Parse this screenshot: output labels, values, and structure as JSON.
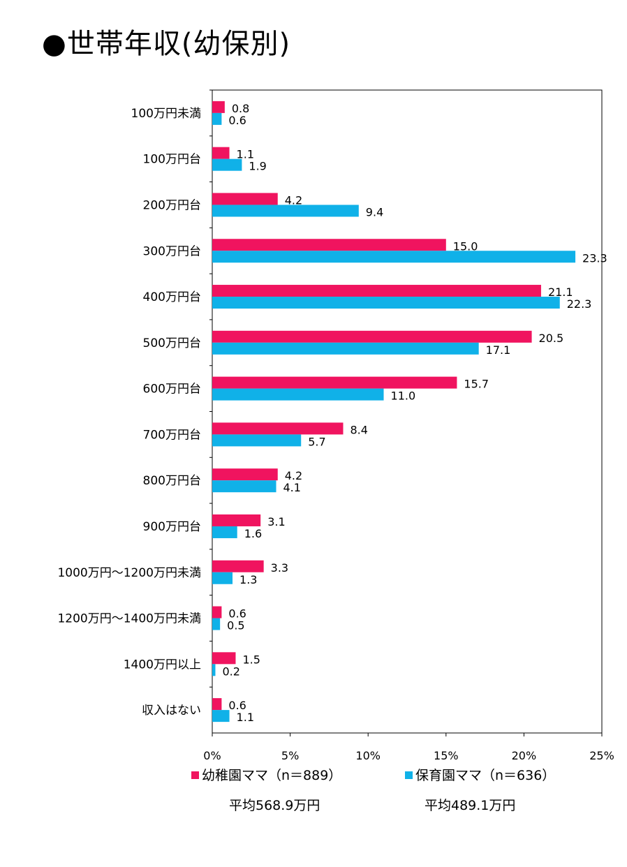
{
  "title": "●世帯年収(幼保別)",
  "colors": {
    "series1": "#f0145f",
    "series2": "#10b1e8",
    "axis": "#000000"
  },
  "chart_data": {
    "type": "bar",
    "orientation": "horizontal",
    "categories": [
      "100万円未満",
      "100万円台",
      "200万円台",
      "300万円台",
      "400万円台",
      "500万円台",
      "600万円台",
      "700万円台",
      "800万円台",
      "900万円台",
      "1000万円～1200万円未満",
      "1200万円～1400万円未満",
      "1400万円以上",
      "収入はない"
    ],
    "series": [
      {
        "name": "幼稚園ママ（n＝889）",
        "values": [
          0.8,
          1.1,
          4.2,
          15.0,
          21.1,
          20.5,
          15.7,
          8.4,
          4.2,
          3.1,
          3.3,
          0.6,
          1.5,
          0.6
        ]
      },
      {
        "name": "保育園ママ（n＝636）",
        "values": [
          0.6,
          1.9,
          9.4,
          23.3,
          22.3,
          17.1,
          11.0,
          5.7,
          4.1,
          1.6,
          1.3,
          0.5,
          0.2,
          1.1
        ]
      }
    ],
    "value_labels": [
      [
        "0.8",
        "1.1",
        "4.2",
        "15.0",
        "21.1",
        "20.5",
        "15.7",
        "8.4",
        "4.2",
        "3.1",
        "3.3",
        "0.6",
        "1.5",
        "0.6"
      ],
      [
        "0.6",
        "1.9",
        "9.4",
        "23.3",
        "22.3",
        "17.1",
        "11.0",
        "5.7",
        "4.1",
        "1.6",
        "1.3",
        "0.5",
        "0.2",
        "1.1"
      ]
    ],
    "xlim": [
      0,
      25
    ],
    "xticks": [
      0,
      5,
      10,
      15,
      20,
      25
    ],
    "xtick_labels": [
      "0%",
      "5%",
      "10%",
      "15%",
      "20%",
      "25%"
    ],
    "grid": false,
    "legend_position": "bottom"
  },
  "legend": {
    "series1_label": "幼稚園ママ（n＝889）",
    "series2_label": "保育園ママ（n＝636）"
  },
  "averages": {
    "series1": "平均568.9万円",
    "series2": "平均489.1万円"
  }
}
